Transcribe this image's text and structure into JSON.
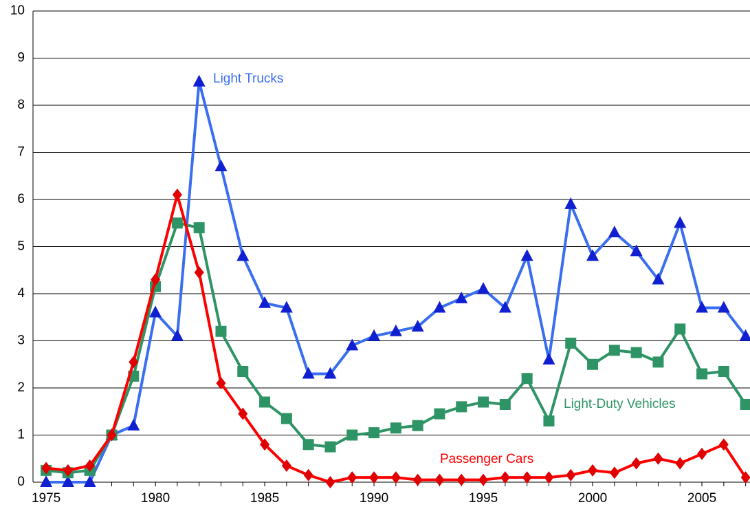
{
  "chart_data": {
    "type": "line",
    "x": [
      1975,
      1976,
      1977,
      1978,
      1979,
      1980,
      1981,
      1982,
      1983,
      1984,
      1985,
      1986,
      1987,
      1988,
      1989,
      1990,
      1991,
      1992,
      1993,
      1994,
      1995,
      1996,
      1997,
      1998,
      1999,
      2000,
      2001,
      2002,
      2003,
      2004,
      2005,
      2006,
      2007
    ],
    "series": [
      {
        "name": "Light Trucks",
        "color": "#3a6ef0",
        "marker": "triangle",
        "values": [
          0,
          0,
          0,
          1.0,
          1.2,
          3.6,
          3.1,
          8.5,
          6.7,
          4.8,
          3.8,
          3.7,
          2.3,
          2.3,
          2.9,
          3.1,
          3.2,
          3.3,
          3.7,
          3.9,
          4.1,
          3.7,
          4.8,
          2.6,
          5.9,
          4.8,
          5.3,
          4.9,
          4.3,
          5.5,
          3.7,
          3.7,
          3.1
        ]
      },
      {
        "name": "Light-Duty Vehicles",
        "color": "#2e9465",
        "marker": "square",
        "values": [
          0.25,
          0.2,
          0.25,
          1.0,
          2.25,
          4.15,
          5.5,
          5.4,
          3.2,
          2.35,
          1.7,
          1.35,
          0.8,
          0.75,
          1.0,
          1.05,
          1.15,
          1.2,
          1.45,
          1.6,
          1.7,
          1.65,
          2.2,
          1.3,
          2.95,
          2.5,
          2.8,
          2.75,
          2.55,
          3.25,
          2.3,
          2.35,
          1.65
        ]
      },
      {
        "name": "Passenger Cars",
        "color": "#ff0000",
        "marker": "diamond",
        "values": [
          0.3,
          0.25,
          0.35,
          1.0,
          2.55,
          4.3,
          6.1,
          4.45,
          2.1,
          1.45,
          0.8,
          0.35,
          0.15,
          0.0,
          0.1,
          0.1,
          0.1,
          0.05,
          0.05,
          0.05,
          0.05,
          0.1,
          0.1,
          0.1,
          0.15,
          0.25,
          0.2,
          0.4,
          0.5,
          0.4,
          0.6,
          0.8,
          0.1
        ]
      }
    ],
    "xlim": [
      1974.4,
      2007.2
    ],
    "xticks": [
      1975,
      1980,
      1985,
      1990,
      1995,
      2000,
      2005
    ],
    "ylim": [
      0,
      10
    ],
    "yticks": [
      0,
      1,
      2,
      3,
      4,
      5,
      6,
      7,
      8,
      9,
      10
    ],
    "grid": true
  }
}
